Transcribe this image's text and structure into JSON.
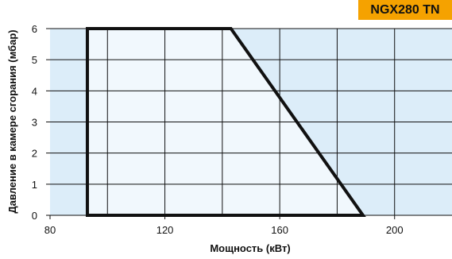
{
  "badge": {
    "text": "NGX280 TN"
  },
  "chart_data": {
    "type": "area",
    "title": "",
    "xlabel": "Мощность (кВт)",
    "ylabel": "Давление в камере сгорания (мбар)",
    "xlim": [
      80,
      220
    ],
    "ylim": [
      0,
      6
    ],
    "x_ticks": [
      80,
      120,
      160,
      200
    ],
    "x_tick_labels": [
      "80",
      "120",
      "160",
      "200"
    ],
    "y_ticks": [
      0,
      1,
      2,
      3,
      4,
      5,
      6
    ],
    "y_tick_labels": [
      "0",
      "1",
      "2",
      "3",
      "4",
      "5",
      "6"
    ],
    "grid": true,
    "grid_x": [
      100,
      120,
      140,
      160,
      180,
      200
    ],
    "series": [
      {
        "x": [
          93,
          93,
          143,
          189,
          93
        ],
        "y": [
          0,
          6,
          6,
          0,
          0
        ]
      }
    ],
    "colors": {
      "plot_background": "#dcedf9",
      "region_fill": "#f1f8fd",
      "outline": "#111111",
      "grid": "#111111",
      "badge": "#f5a200"
    }
  }
}
